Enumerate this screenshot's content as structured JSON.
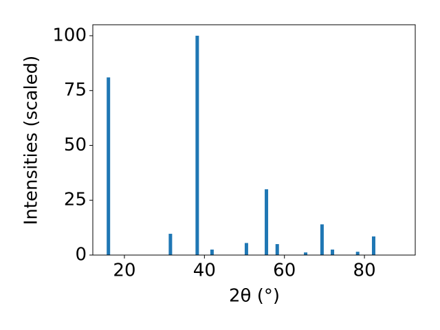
{
  "chart_data": {
    "type": "bar",
    "x_label": "2θ (°)",
    "y_label": "Intensities (scaled)",
    "x": [
      16.0,
      31.5,
      38.2,
      41.9,
      50.5,
      55.5,
      58.2,
      65.3,
      69.4,
      72.0,
      78.3,
      82.3
    ],
    "values": [
      81,
      9.7,
      100,
      2.5,
      5.5,
      30,
      5,
      1.2,
      14,
      2.5,
      1.5,
      8.5
    ],
    "color": "#1f77b4",
    "xlim": [
      12.1,
      92.7
    ],
    "xticks": [
      20,
      40,
      60,
      80
    ],
    "ylim": [
      0,
      105
    ],
    "yticks": [
      0,
      25,
      50,
      75,
      100
    ]
  }
}
